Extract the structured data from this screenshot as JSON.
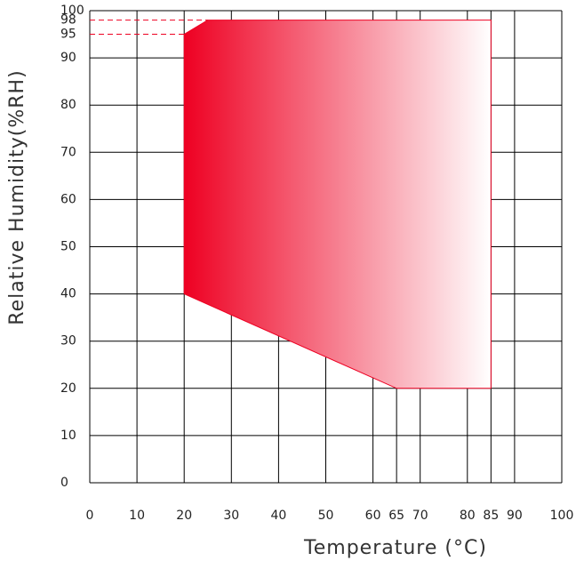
{
  "chart_data": {
    "type": "polygon",
    "x_label": "Temperature (°C)",
    "y_label": "Relative Humidity(%RH)",
    "series": [
      {
        "x": [
          20,
          20,
          25,
          85,
          85,
          65
        ],
        "values": [
          40,
          95,
          98,
          98,
          20,
          20
        ],
        "color": "#ee0022"
      }
    ],
    "xlim": [
      0,
      100
    ],
    "ylim": [
      0,
      100
    ],
    "xticks": [
      0,
      10,
      20,
      30,
      40,
      50,
      60,
      65,
      70,
      80,
      85,
      90,
      100
    ],
    "yticks": [
      0,
      10,
      20,
      30,
      40,
      50,
      60,
      70,
      80,
      90,
      95,
      98,
      100
    ],
    "ygrid": [
      0,
      10,
      20,
      30,
      40,
      50,
      60,
      70,
      80,
      90,
      100
    ],
    "guides": [
      {
        "x": 20,
        "y": 95
      },
      {
        "x": 25,
        "y": 98
      }
    ]
  }
}
